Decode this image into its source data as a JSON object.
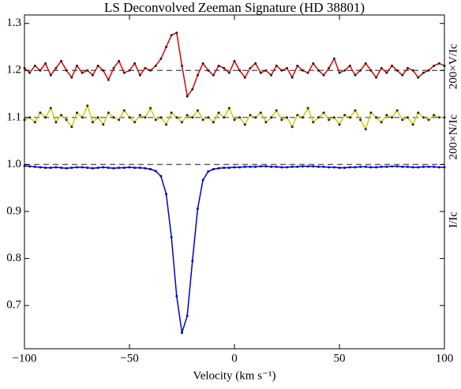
{
  "chart_data": {
    "type": "line",
    "title": "LS Deconvolved Zeeman Signature (HD 38801)",
    "x_label": "Velocity (km s⁻¹)",
    "right_labels": [
      "200×V/Ic",
      "200×N/Ic",
      "I/Ic"
    ],
    "x": [
      -100,
      -97.5,
      -95,
      -92.5,
      -90,
      -87.5,
      -85,
      -82.5,
      -80,
      -77.5,
      -75,
      -72.5,
      -70,
      -67.5,
      -65,
      -62.5,
      -60,
      -57.5,
      -55,
      -52.5,
      -50,
      -47.5,
      -45,
      -42.5,
      -40,
      -37.5,
      -35,
      -32.5,
      -30,
      -27.5,
      -25,
      -22.5,
      -20,
      -17.5,
      -15,
      -12.5,
      -10,
      -7.5,
      -5,
      -2.5,
      0,
      2.5,
      5,
      7.5,
      10,
      12.5,
      15,
      17.5,
      20,
      22.5,
      25,
      27.5,
      30,
      32.5,
      35,
      37.5,
      40,
      42.5,
      45,
      47.5,
      50,
      52.5,
      55,
      57.5,
      60,
      62.5,
      65,
      67.5,
      70,
      72.5,
      75,
      77.5,
      80,
      82.5,
      85,
      87.5,
      90,
      92.5,
      95,
      97.5,
      100
    ],
    "series": [
      {
        "name": "200×V/Ic",
        "color": "#e00000",
        "marker_color": "#222222",
        "values": [
          1.205,
          1.195,
          1.21,
          1.2,
          1.215,
          1.19,
          1.205,
          1.22,
          1.2,
          1.185,
          1.21,
          1.195,
          1.2,
          1.19,
          1.21,
          1.2,
          1.18,
          1.205,
          1.22,
          1.195,
          1.2,
          1.215,
          1.19,
          1.205,
          1.2,
          1.21,
          1.225,
          1.25,
          1.275,
          1.28,
          1.21,
          1.145,
          1.16,
          1.19,
          1.215,
          1.2,
          1.19,
          1.21,
          1.205,
          1.195,
          1.22,
          1.2,
          1.185,
          1.205,
          1.215,
          1.195,
          1.2,
          1.19,
          1.21,
          1.2,
          1.205,
          1.185,
          1.21,
          1.2,
          1.195,
          1.215,
          1.2,
          1.19,
          1.205,
          1.225,
          1.195,
          1.2,
          1.21,
          1.19,
          1.2,
          1.215,
          1.2,
          1.185,
          1.205,
          1.195,
          1.21,
          1.2,
          1.19,
          1.205,
          1.2,
          1.185,
          1.195,
          1.2,
          1.21,
          1.215,
          1.21
        ]
      },
      {
        "name": "200×N/Ic",
        "color": "#cccc00",
        "marker_color": "#222222",
        "values": [
          1.095,
          1.1,
          1.09,
          1.11,
          1.1,
          1.12,
          1.09,
          1.105,
          1.095,
          1.08,
          1.11,
          1.1,
          1.125,
          1.09,
          1.1,
          1.085,
          1.11,
          1.1,
          1.095,
          1.115,
          1.1,
          1.09,
          1.105,
          1.1,
          1.12,
          1.095,
          1.1,
          1.085,
          1.11,
          1.1,
          1.09,
          1.105,
          1.1,
          1.115,
          1.095,
          1.1,
          1.09,
          1.11,
          1.1,
          1.12,
          1.095,
          1.1,
          1.085,
          1.105,
          1.1,
          1.11,
          1.09,
          1.1,
          1.115,
          1.095,
          1.1,
          1.08,
          1.105,
          1.1,
          1.12,
          1.09,
          1.1,
          1.11,
          1.095,
          1.1,
          1.085,
          1.105,
          1.1,
          1.115,
          1.095,
          1.075,
          1.11,
          1.1,
          1.09,
          1.105,
          1.1,
          1.115,
          1.095,
          1.1,
          1.085,
          1.11,
          1.1,
          1.095,
          1.105,
          1.1,
          1.1
        ]
      },
      {
        "name": "I/Ic",
        "color": "#0000cc",
        "marker_color": "#0000cc",
        "values": [
          0.997,
          0.996,
          0.995,
          0.994,
          0.993,
          0.993,
          0.994,
          0.993,
          0.992,
          0.993,
          0.994,
          0.994,
          0.993,
          0.992,
          0.993,
          0.994,
          0.993,
          0.992,
          0.993,
          0.993,
          0.994,
          0.993,
          0.993,
          0.992,
          0.99,
          0.986,
          0.975,
          0.937,
          0.845,
          0.72,
          0.642,
          0.678,
          0.795,
          0.906,
          0.967,
          0.985,
          0.99,
          0.992,
          0.993,
          0.993,
          0.994,
          0.994,
          0.995,
          0.995,
          0.995,
          0.996,
          0.996,
          0.995,
          0.995,
          0.994,
          0.994,
          0.995,
          0.995,
          0.996,
          0.996,
          0.996,
          0.995,
          0.995,
          0.994,
          0.994,
          0.993,
          0.993,
          0.994,
          0.994,
          0.995,
          0.995,
          0.994,
          0.994,
          0.995,
          0.995,
          0.996,
          0.996,
          0.995,
          0.995,
          0.994,
          0.994,
          0.995,
          0.995,
          0.995,
          0.994,
          0.994
        ]
      }
    ],
    "reference_lines": [
      1.2,
      1.1,
      1.0
    ],
    "xlim": [
      -100,
      100
    ],
    "ylim": [
      0.608,
      1.318
    ],
    "xticks": [
      {
        "value": -100,
        "label": "−100"
      },
      {
        "value": -50,
        "label": "−50"
      },
      0,
      50,
      100
    ],
    "yticks": [
      0.7,
      0.8,
      0.9,
      {
        "value": 1,
        "label": "1.0"
      },
      1.1,
      1.2,
      1.3
    ]
  }
}
